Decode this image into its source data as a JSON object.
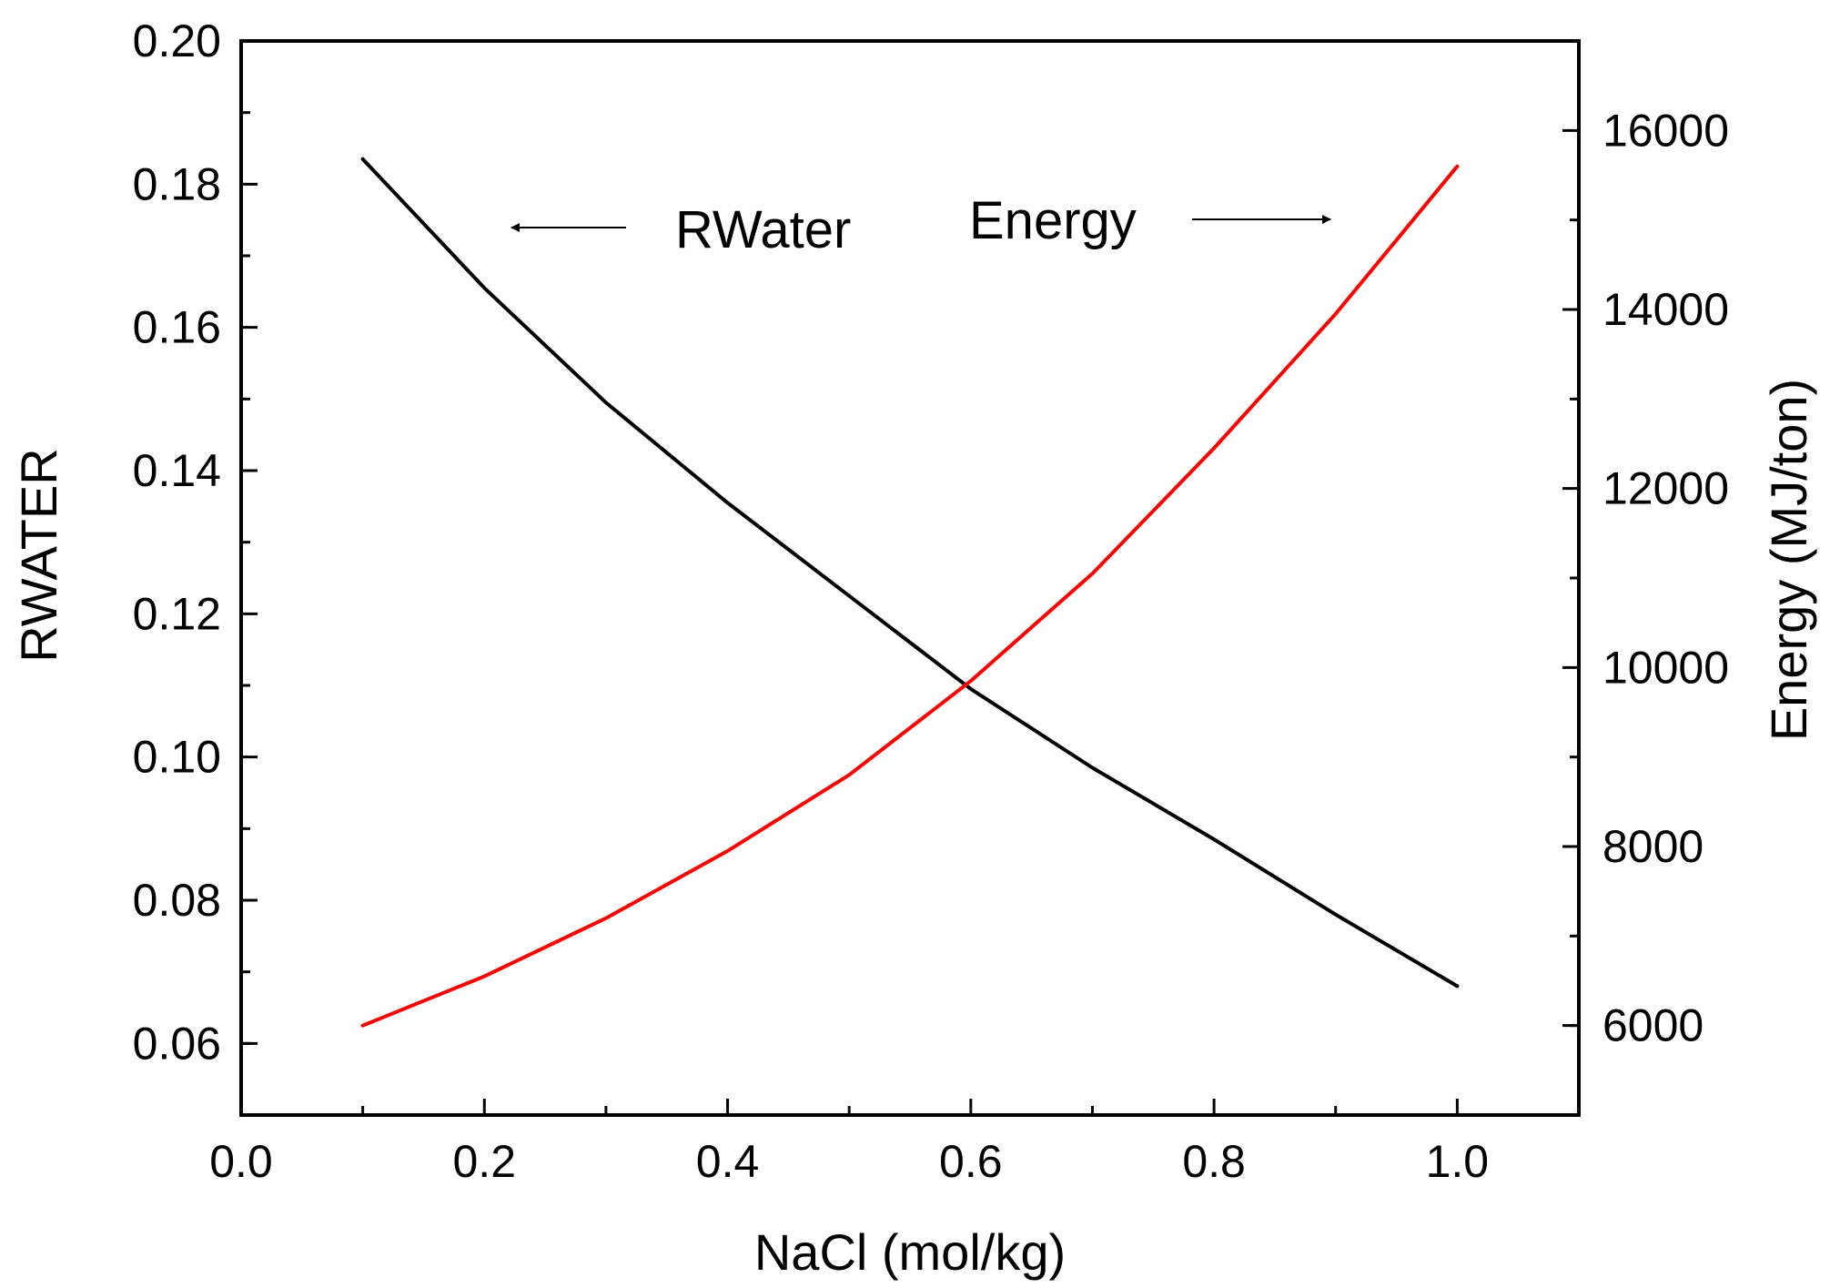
{
  "chart_data": {
    "type": "line",
    "title": "",
    "xlabel": "NaCl (mol/kg)",
    "ylabel_left": "RWATER",
    "ylabel_right": "Energy (MJ/ton)",
    "xlim": [
      0.0,
      1.1
    ],
    "ylim_left": [
      0.05,
      0.2
    ],
    "ylim_right": [
      5000,
      17000
    ],
    "x_ticks": [
      0.0,
      0.2,
      0.4,
      0.6,
      0.8,
      1.0
    ],
    "x_tick_labels": [
      "0.0",
      "0.2",
      "0.4",
      "0.6",
      "0.8",
      "1.0"
    ],
    "y_left_ticks": [
      0.06,
      0.08,
      0.1,
      0.12,
      0.14,
      0.16,
      0.18,
      0.2
    ],
    "y_left_tick_labels": [
      "0.06",
      "0.08",
      "0.10",
      "0.12",
      "0.14",
      "0.16",
      "0.18",
      "0.20"
    ],
    "y_right_ticks": [
      6000,
      8000,
      10000,
      12000,
      14000,
      16000
    ],
    "y_right_tick_labels": [
      "6000",
      "8000",
      "10000",
      "12000",
      "14000",
      "16000"
    ],
    "grid": false,
    "series": [
      {
        "name": "RWater",
        "axis": "left",
        "color": "#000000",
        "x": [
          0.1,
          0.2,
          0.3,
          0.4,
          0.5,
          0.6,
          0.7,
          0.8,
          0.9,
          1.0
        ],
        "values": [
          0.1835,
          0.1655,
          0.1495,
          0.1355,
          0.1225,
          0.1095,
          0.0985,
          0.0885,
          0.078,
          0.068
        ]
      },
      {
        "name": "Energy",
        "axis": "right",
        "color": "#ff0000",
        "x": [
          0.1,
          0.2,
          0.3,
          0.4,
          0.5,
          0.6,
          0.7,
          0.8,
          0.9,
          1.0
        ],
        "values": [
          6000,
          6550,
          7200,
          7950,
          8800,
          9850,
          11050,
          12450,
          13950,
          15600
        ]
      }
    ],
    "annotations": [
      {
        "text": "RWater",
        "arrow": "left"
      },
      {
        "text": "Energy",
        "arrow": "right"
      }
    ]
  }
}
